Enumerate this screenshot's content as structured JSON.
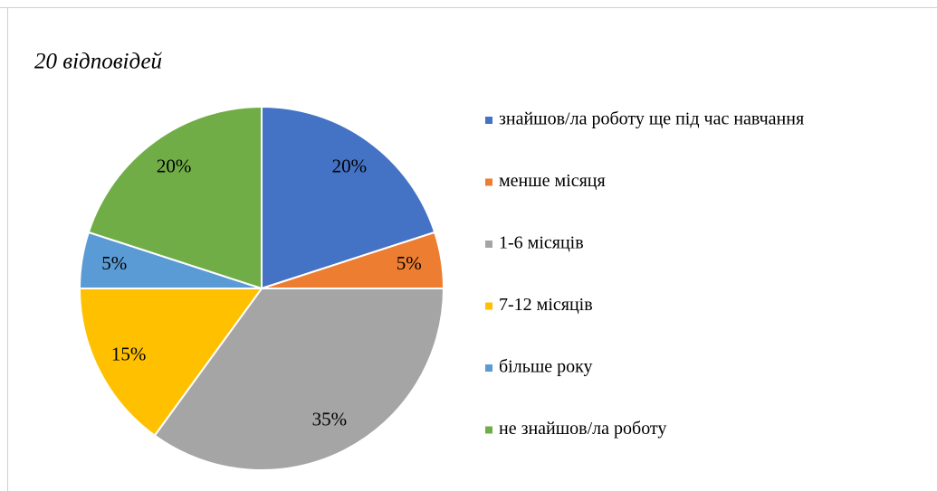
{
  "chart_data": {
    "type": "pie",
    "title": "20 відповідей",
    "categories": [
      "знайшов/ла роботу ще під час навчання",
      "менше місяця",
      "1-6 місяців",
      "7-12 місяців",
      "більше року",
      "не знайшов/ла роботу"
    ],
    "values": [
      20,
      5,
      35,
      15,
      5,
      20
    ],
    "value_labels": [
      "20%",
      "5%",
      "35%",
      "15%",
      "5%",
      "20%"
    ],
    "colors": [
      "#4472c4",
      "#ed7d31",
      "#a5a5a5",
      "#ffc000",
      "#5b9bd5",
      "#70ad47"
    ],
    "legend": "right"
  }
}
